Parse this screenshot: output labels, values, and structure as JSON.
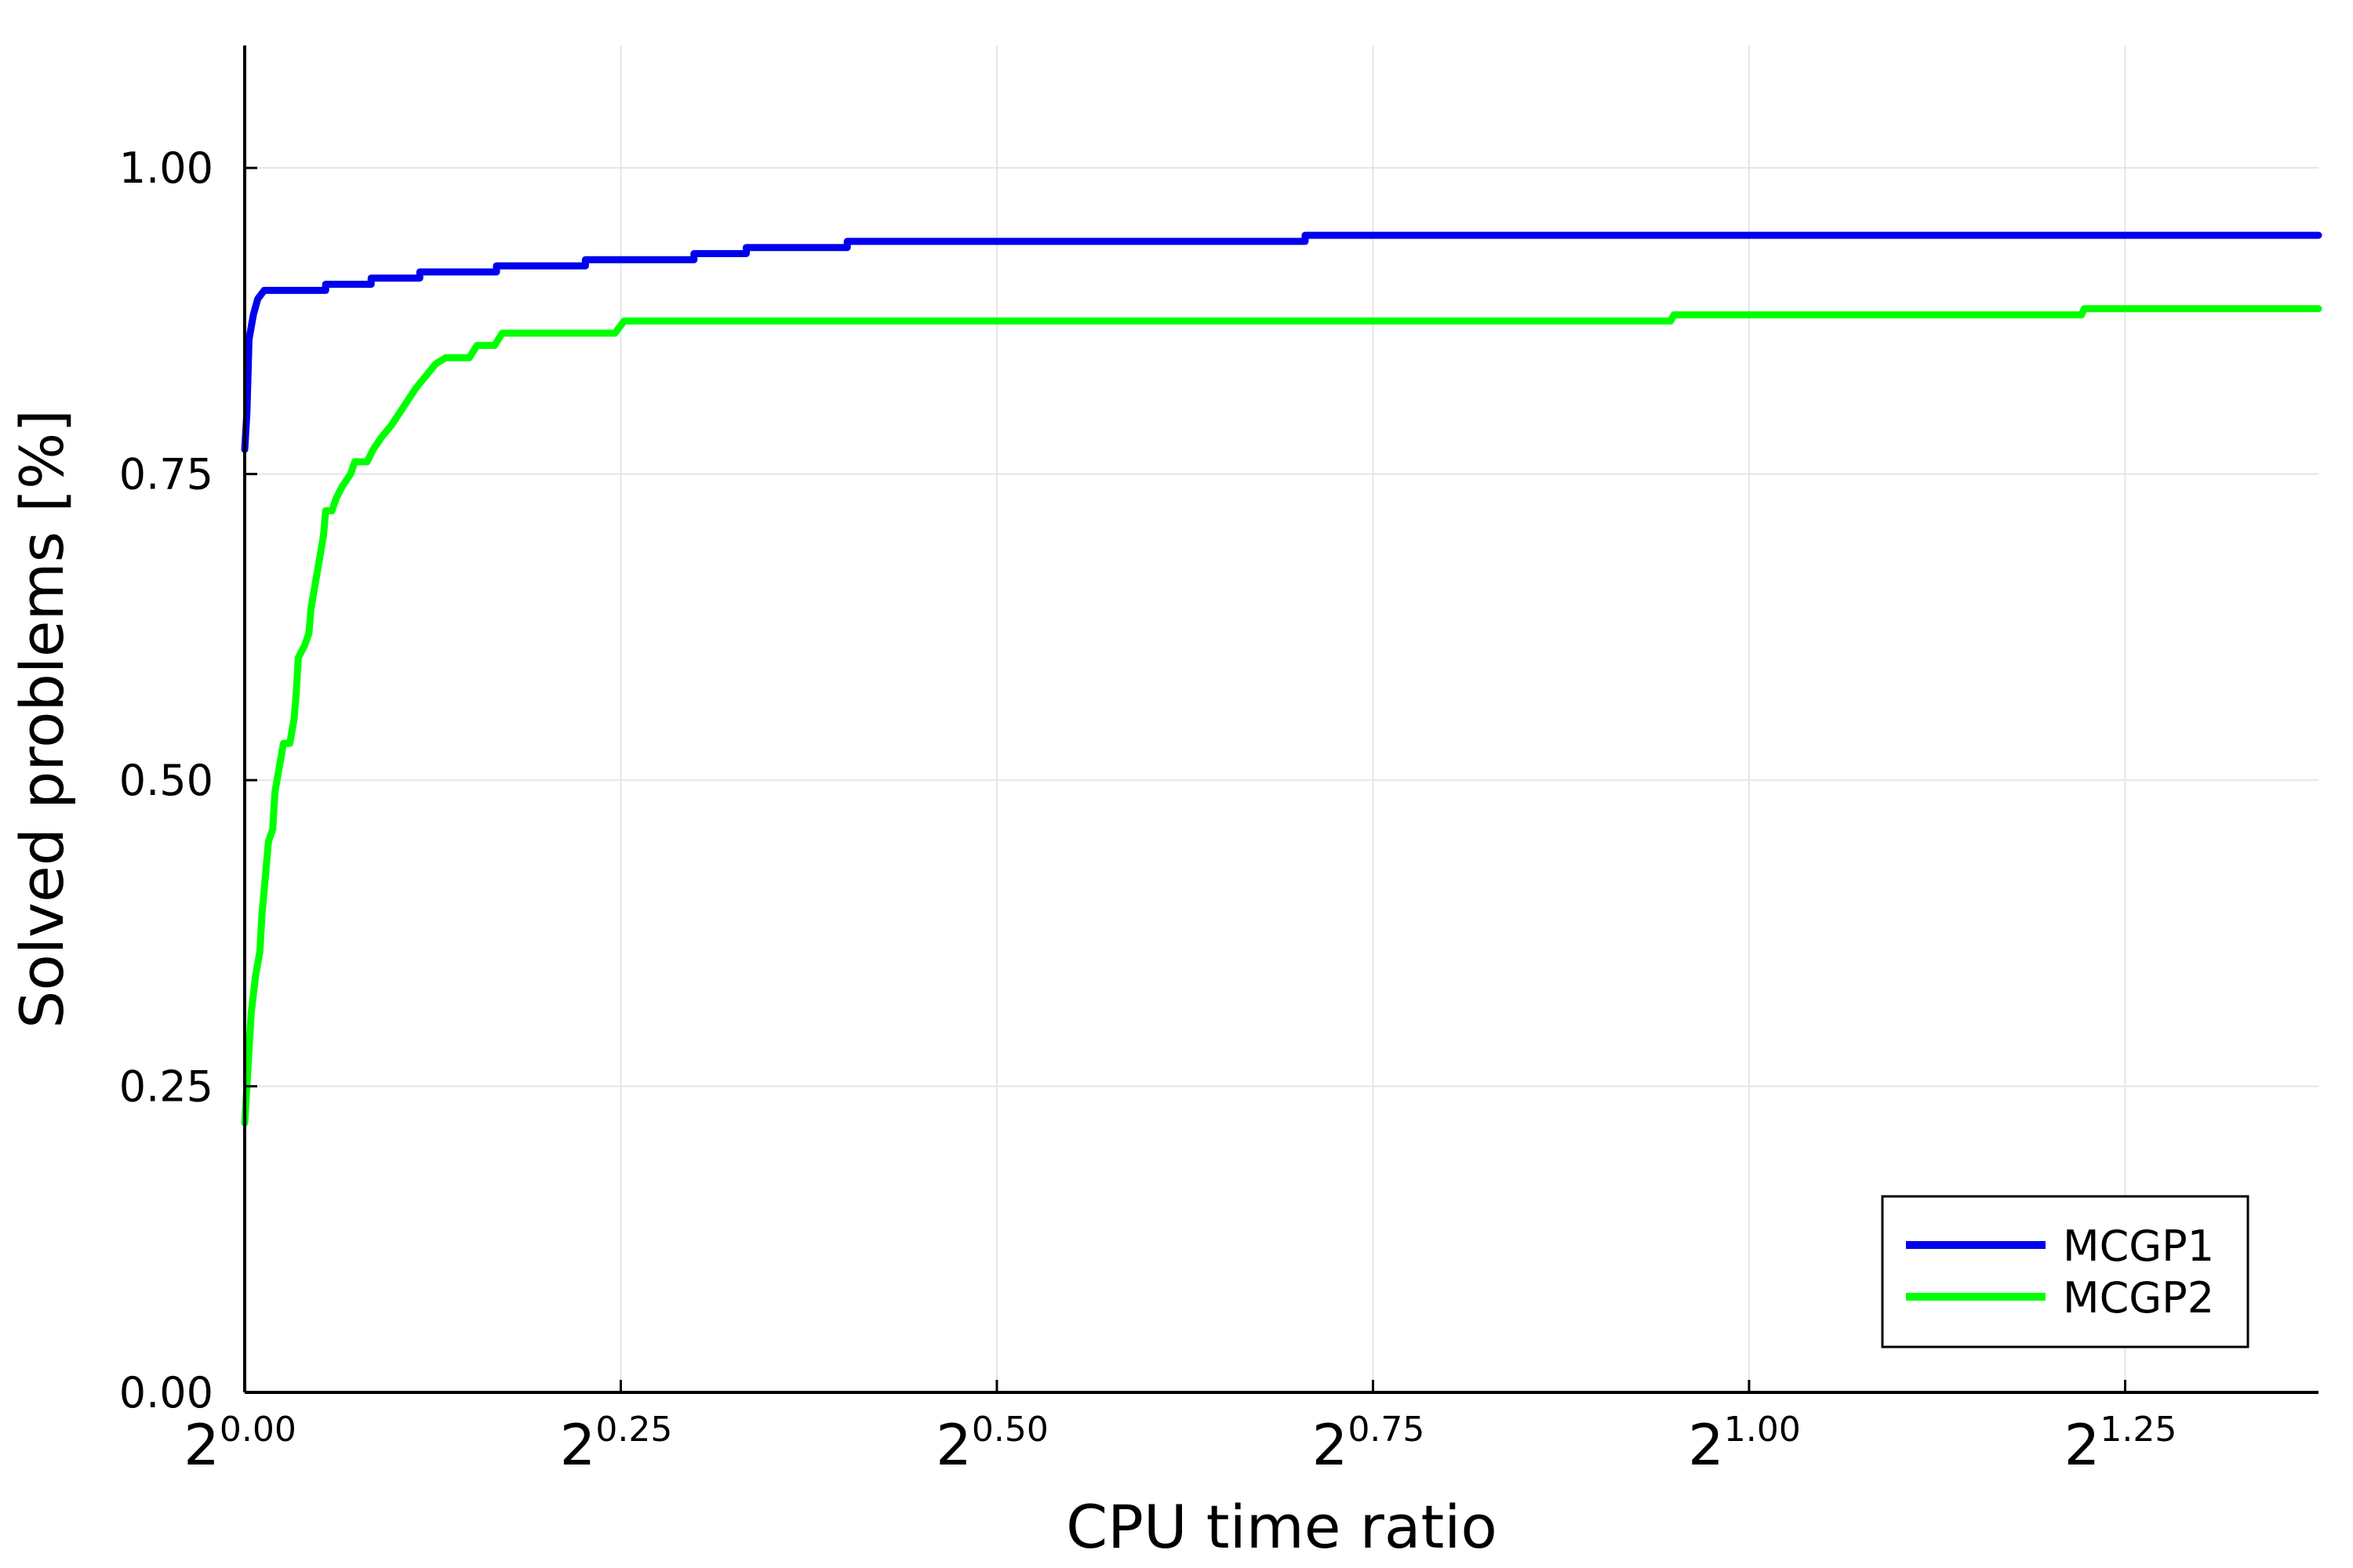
{
  "chart_data": {
    "type": "line",
    "title": "",
    "xlabel": "CPU time ratio",
    "ylabel": "Solved problems [%]",
    "x_scale": "log2",
    "xlim": [
      1.0,
      2.6
    ],
    "ylim": [
      0.0,
      1.1
    ],
    "x_ticks": [
      {
        "value": 1.0,
        "base": "2",
        "exp": "0.00"
      },
      {
        "value": 1.1892,
        "base": "2",
        "exp": "0.25"
      },
      {
        "value": 1.4142,
        "base": "2",
        "exp": "0.50"
      },
      {
        "value": 1.6818,
        "base": "2",
        "exp": "0.75"
      },
      {
        "value": 2.0,
        "base": "2",
        "exp": "1.00"
      },
      {
        "value": 2.3784,
        "base": "2",
        "exp": "1.25"
      }
    ],
    "y_ticks": [
      {
        "value": 0.0,
        "label": "0.00"
      },
      {
        "value": 0.25,
        "label": "0.25"
      },
      {
        "value": 0.5,
        "label": "0.50"
      },
      {
        "value": 0.75,
        "label": "0.75"
      },
      {
        "value": 1.0,
        "label": "1.00"
      }
    ],
    "grid": true,
    "legend_position": "bottom-right",
    "series": [
      {
        "name": "MCGP1",
        "color": "#0000ee",
        "points": [
          [
            1.0,
            0.77
          ],
          [
            1.001,
            0.8
          ],
          [
            1.002,
            0.86
          ],
          [
            1.004,
            0.88
          ],
          [
            1.006,
            0.893
          ],
          [
            1.009,
            0.9
          ],
          [
            1.038,
            0.9
          ],
          [
            1.038,
            0.905
          ],
          [
            1.06,
            0.905
          ],
          [
            1.06,
            0.91
          ],
          [
            1.084,
            0.91
          ],
          [
            1.084,
            0.915
          ],
          [
            1.123,
            0.915
          ],
          [
            1.123,
            0.92
          ],
          [
            1.17,
            0.92
          ],
          [
            1.17,
            0.925
          ],
          [
            1.23,
            0.925
          ],
          [
            1.23,
            0.93
          ],
          [
            1.26,
            0.93
          ],
          [
            1.26,
            0.935
          ],
          [
            1.32,
            0.935
          ],
          [
            1.32,
            0.94
          ],
          [
            1.63,
            0.94
          ],
          [
            1.63,
            0.945
          ],
          [
            2.6,
            0.945
          ]
        ]
      },
      {
        "name": "MCGP2",
        "color": "#00ff00",
        "points": [
          [
            1.0,
            0.22
          ],
          [
            1.001,
            0.25
          ],
          [
            1.002,
            0.28
          ],
          [
            1.003,
            0.31
          ],
          [
            1.005,
            0.34
          ],
          [
            1.007,
            0.36
          ],
          [
            1.008,
            0.39
          ],
          [
            1.009,
            0.41
          ],
          [
            1.01,
            0.43
          ],
          [
            1.011,
            0.45
          ],
          [
            1.013,
            0.46
          ],
          [
            1.014,
            0.49
          ],
          [
            1.016,
            0.51
          ],
          [
            1.018,
            0.53
          ],
          [
            1.021,
            0.53
          ],
          [
            1.023,
            0.55
          ],
          [
            1.024,
            0.57
          ],
          [
            1.025,
            0.6
          ],
          [
            1.028,
            0.61
          ],
          [
            1.03,
            0.62
          ],
          [
            1.031,
            0.64
          ],
          [
            1.033,
            0.66
          ],
          [
            1.035,
            0.68
          ],
          [
            1.036,
            0.69
          ],
          [
            1.037,
            0.7
          ],
          [
            1.038,
            0.72
          ],
          [
            1.041,
            0.72
          ],
          [
            1.043,
            0.73
          ],
          [
            1.046,
            0.74
          ],
          [
            1.05,
            0.75
          ],
          [
            1.052,
            0.76
          ],
          [
            1.058,
            0.76
          ],
          [
            1.061,
            0.77
          ],
          [
            1.065,
            0.78
          ],
          [
            1.07,
            0.79
          ],
          [
            1.074,
            0.8
          ],
          [
            1.078,
            0.81
          ],
          [
            1.082,
            0.82
          ],
          [
            1.087,
            0.83
          ],
          [
            1.092,
            0.84
          ],
          [
            1.097,
            0.845
          ],
          [
            1.109,
            0.845
          ],
          [
            1.113,
            0.855
          ],
          [
            1.122,
            0.855
          ],
          [
            1.126,
            0.865
          ],
          [
            1.186,
            0.865
          ],
          [
            1.191,
            0.875
          ],
          [
            1.929,
            0.875
          ],
          [
            1.932,
            0.88
          ],
          [
            2.331,
            0.88
          ],
          [
            2.334,
            0.885
          ],
          [
            2.6,
            0.885
          ]
        ]
      }
    ]
  }
}
